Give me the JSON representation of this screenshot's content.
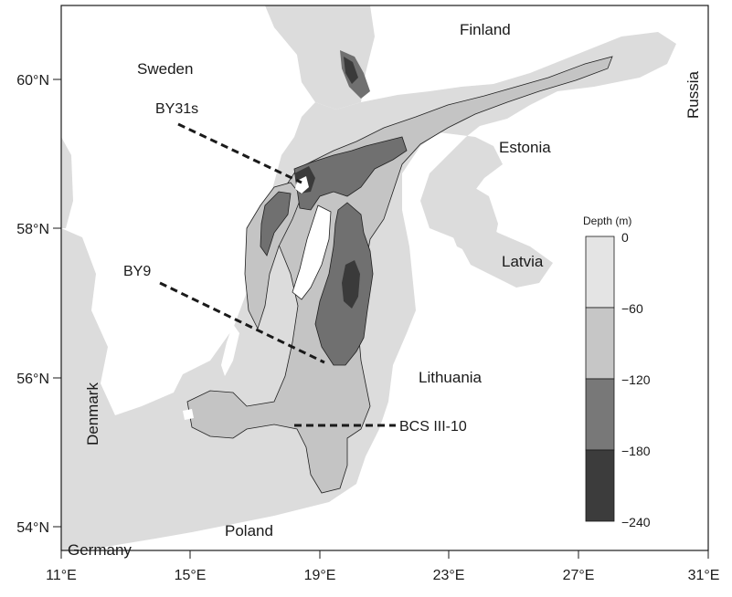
{
  "map": {
    "x_ticks": [
      "11°E",
      "15°E",
      "19°E",
      "23°E",
      "27°E",
      "31°E"
    ],
    "y_ticks": [
      "54°N",
      "56°N",
      "58°N",
      "60°N"
    ],
    "countries": {
      "finland": "Finland",
      "sweden": "Sweden",
      "russia": "Russia",
      "estonia": "Estonia",
      "latvia": "Latvia",
      "lithuania": "Lithuania",
      "denmark": "Denmark",
      "poland": "Poland",
      "germany": "Germany"
    },
    "stations": {
      "by31s": "BY31s",
      "by9": "BY9",
      "bcs": "BCS III-10"
    },
    "colorbar": {
      "title": "Depth (m)",
      "levels": [
        "0",
        "−60",
        "−120",
        "−180",
        "−240"
      ],
      "colors": [
        "#e4e4e4",
        "#c6c6c6",
        "#787878",
        "#3c3c3c"
      ]
    },
    "colors": {
      "land": "#ffffff",
      "sea_shallow": "#dcdcdc",
      "sea_mid": "#c4c4c4",
      "sea_deep": "#707070",
      "sea_deepest": "#3a3a3a"
    }
  }
}
